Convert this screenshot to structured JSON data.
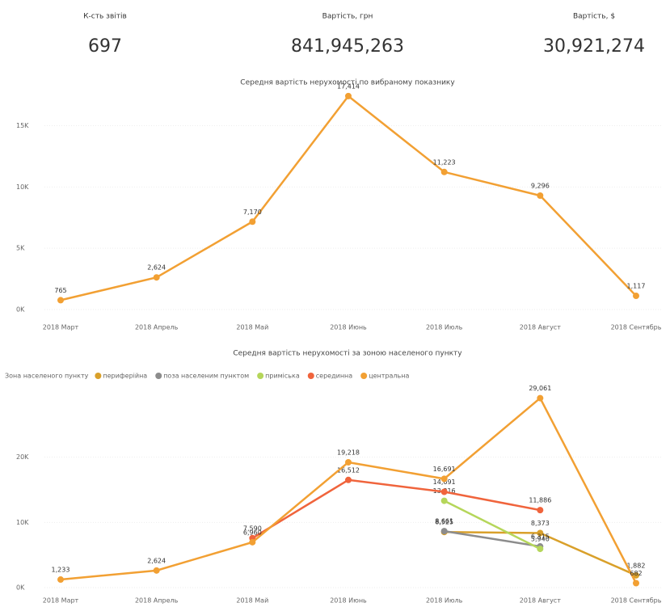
{
  "cards": [
    {
      "label": "К-сть звітів",
      "value": "697"
    },
    {
      "label": "Вартість, грн",
      "value": "841,945,263"
    },
    {
      "label": "Вартість, $",
      "value": "30,921,274"
    }
  ],
  "chart_data": [
    {
      "type": "line",
      "title": "Середня вартість нерухомості по вибраному показнику",
      "categories": [
        "2018 Март",
        "2018 Апрель",
        "2018 Май",
        "2018 Июнь",
        "2018 Июль",
        "2018 Август",
        "2018 Сентябрь"
      ],
      "series": [
        {
          "name": null,
          "color": "#F2A033",
          "values": [
            765,
            2624,
            7170,
            17414,
            11223,
            9296,
            1117
          ],
          "value_labels": [
            "765",
            "2,624",
            "7,170",
            "17,414",
            "11,223",
            "9,296",
            "1,117"
          ]
        }
      ],
      "ylim": [
        0,
        18000
      ],
      "yticks": [
        {
          "value": 0,
          "label": "0K"
        },
        {
          "value": 5000,
          "label": "5K"
        },
        {
          "value": 10000,
          "label": "10K"
        },
        {
          "value": 15000,
          "label": "15K"
        }
      ],
      "grid": true
    },
    {
      "type": "line",
      "title": "Середня вартість нерухомості за зоною населеного пункту",
      "legend_title": "Зона населеного пункту",
      "categories": [
        "2018 Март",
        "2018 Апрель",
        "2018 Май",
        "2018 Июнь",
        "2018 Июль",
        "2018 Август",
        "2018 Сентябрь"
      ],
      "series": [
        {
          "name": "периферійна",
          "color": "#D9A02A",
          "values": [
            null,
            null,
            null,
            null,
            8525,
            8373,
            1882
          ],
          "value_labels": [
            null,
            null,
            null,
            null,
            "8,525",
            "8,373",
            "1,882"
          ]
        },
        {
          "name": "поза населеним пунктом",
          "color": "#8C8C8C",
          "values": [
            null,
            null,
            null,
            null,
            8661,
            6315,
            null
          ],
          "value_labels": [
            null,
            null,
            null,
            null,
            "8,661",
            "6,315",
            null
          ]
        },
        {
          "name": "приміська",
          "color": "#B5D65A",
          "values": [
            null,
            null,
            null,
            null,
            13316,
            5940,
            null
          ],
          "value_labels": [
            null,
            null,
            null,
            null,
            "13,316",
            "5,940",
            null
          ]
        },
        {
          "name": "серединна",
          "color": "#F0643C",
          "values": [
            null,
            null,
            7590,
            16512,
            14691,
            11886,
            null
          ],
          "value_labels": [
            null,
            null,
            "7,590",
            "16,512",
            "14,691",
            "11,886",
            null
          ]
        },
        {
          "name": "центральна",
          "color": "#F2A033",
          "values": [
            1233,
            2624,
            6960,
            19218,
            16691,
            29061,
            682
          ],
          "value_labels": [
            "1,233",
            "2,624",
            "6,960",
            "19,218",
            "16,691",
            "29,061",
            "682"
          ]
        }
      ],
      "ylim": [
        0,
        30000
      ],
      "yticks": [
        {
          "value": 0,
          "label": "0K"
        },
        {
          "value": 10000,
          "label": "10K"
        },
        {
          "value": 20000,
          "label": "20K"
        }
      ],
      "grid": true
    }
  ]
}
